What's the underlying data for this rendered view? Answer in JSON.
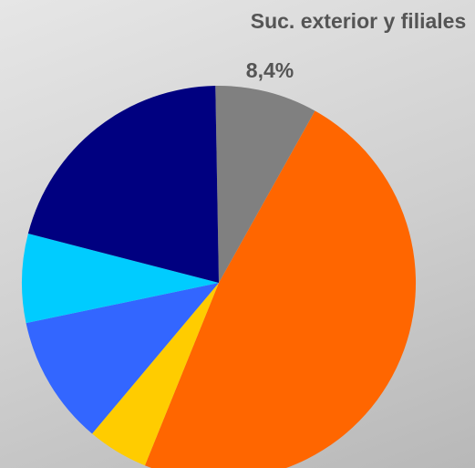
{
  "chart_data": {
    "type": "pie",
    "title": "",
    "slices": [
      {
        "label": "Suc. exterior y filiales",
        "value": 8.4,
        "value_label": "8,4%",
        "color": "#808080"
      },
      {
        "label": "",
        "value": 48.0,
        "color": "#FF6600"
      },
      {
        "label": "",
        "value": 5.0,
        "color": "#FFCC00"
      },
      {
        "label": "",
        "value": 10.6,
        "color": "#3366FF"
      },
      {
        "label": "",
        "value": 7.3,
        "color": "#00CCFF"
      },
      {
        "label": "",
        "value": 20.7,
        "color": "#000080"
      }
    ],
    "start_angle_deg": -1,
    "direction": "clockwise",
    "legend": "none"
  }
}
